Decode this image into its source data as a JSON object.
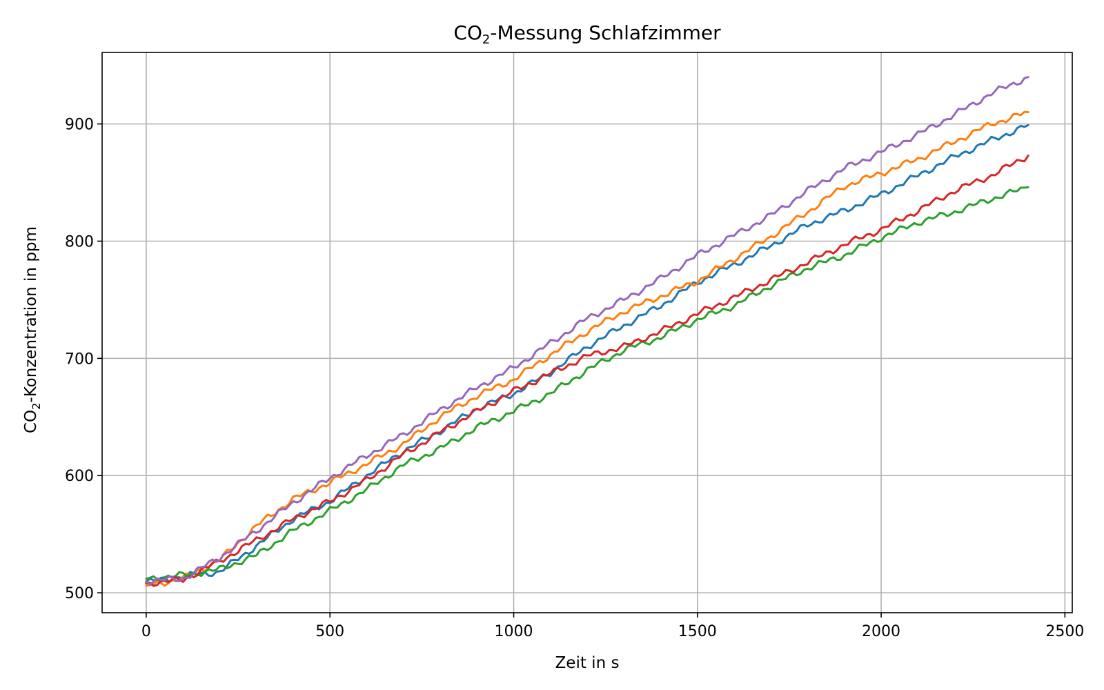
{
  "chart_data": {
    "type": "line",
    "title": {
      "prefix": "CO",
      "sub": "2",
      "suffix": "-Messung Schlafzimmer"
    },
    "xlabel": "Zeit in s",
    "ylabel": {
      "prefix": "CO",
      "sub": "2",
      "suffix": "-Konzentration in ppm"
    },
    "xlim": [
      -120,
      2520
    ],
    "ylim": [
      483,
      961
    ],
    "xticks": [
      0,
      500,
      1000,
      1500,
      2000,
      2500
    ],
    "xtick_labels": [
      "0",
      "500",
      "1000",
      "1500",
      "2000",
      "2500"
    ],
    "yticks": [
      500,
      600,
      700,
      800,
      900
    ],
    "ytick_labels": [
      "500",
      "600",
      "700",
      "800",
      "900"
    ],
    "grid": true,
    "legend": "none",
    "series": [
      {
        "color": "#1f77b4",
        "x": [
          0,
          100,
          200,
          300,
          400,
          500,
          600,
          700,
          800,
          900,
          1000,
          1100,
          1200,
          1300,
          1400,
          1500,
          1600,
          1700,
          1800,
          1900,
          2000,
          2100,
          2200,
          2300,
          2400
        ],
        "y": [
          509,
          514,
          518,
          540,
          563,
          578,
          600,
          621,
          638,
          657,
          670,
          688,
          710,
          728,
          745,
          765,
          780,
          796,
          814,
          826,
          840,
          856,
          872,
          886,
          899
        ]
      },
      {
        "color": "#ff7f0e",
        "x": [
          0,
          100,
          200,
          300,
          400,
          500,
          600,
          700,
          800,
          900,
          1000,
          1100,
          1200,
          1300,
          1400,
          1500,
          1600,
          1700,
          1800,
          1900,
          2000,
          2100,
          2200,
          2300,
          2400
        ],
        "y": [
          506,
          512,
          528,
          557,
          580,
          594,
          610,
          627,
          650,
          668,
          682,
          703,
          723,
          740,
          753,
          766,
          785,
          804,
          825,
          847,
          858,
          870,
          885,
          900,
          910
        ]
      },
      {
        "color": "#2ca02c",
        "x": [
          0,
          100,
          200,
          300,
          400,
          500,
          600,
          700,
          800,
          900,
          1000,
          1100,
          1200,
          1300,
          1400,
          1500,
          1600,
          1700,
          1800,
          1900,
          2000,
          2100,
          2200,
          2300,
          2400
        ],
        "y": [
          512,
          515,
          520,
          532,
          553,
          570,
          588,
          609,
          623,
          641,
          655,
          670,
          690,
          707,
          718,
          733,
          745,
          762,
          777,
          788,
          803,
          816,
          825,
          836,
          846
        ]
      },
      {
        "color": "#d62728",
        "x": [
          0,
          100,
          200,
          300,
          400,
          500,
          600,
          700,
          800,
          900,
          1000,
          1100,
          1200,
          1300,
          1400,
          1500,
          1600,
          1700,
          1800,
          1900,
          2000,
          2100,
          2200,
          2300,
          2400
        ],
        "y": [
          508,
          511,
          527,
          545,
          563,
          578,
          596,
          618,
          637,
          655,
          672,
          687,
          702,
          710,
          723,
          738,
          752,
          767,
          782,
          797,
          810,
          826,
          843,
          856,
          873
        ]
      },
      {
        "color": "#9467bd",
        "x": [
          0,
          100,
          200,
          300,
          400,
          500,
          600,
          700,
          800,
          900,
          1000,
          1100,
          1200,
          1300,
          1400,
          1500,
          1600,
          1700,
          1800,
          1900,
          2000,
          2100,
          2200,
          2300,
          2400
        ],
        "y": [
          510,
          512,
          530,
          553,
          577,
          598,
          617,
          635,
          656,
          675,
          692,
          713,
          734,
          750,
          768,
          788,
          805,
          822,
          843,
          862,
          876,
          891,
          908,
          926,
          940
        ]
      }
    ]
  }
}
